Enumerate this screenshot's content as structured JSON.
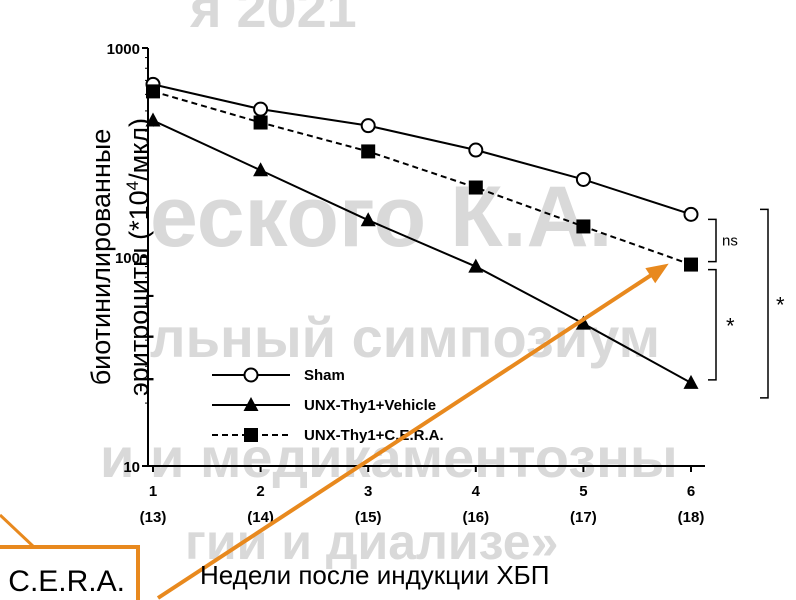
{
  "watermarks": {
    "line1": "я 2021",
    "line2": "еского К.А.",
    "line3": "льный симпозиум",
    "line4": "и и медикаментозны",
    "line5": "гии и диализе»"
  },
  "cera_box_label": "C.E.R.A.",
  "chart_data": {
    "type": "line",
    "ylabel_part1": "биотинилированные",
    "ylabel_part2": "эритроциты (*10",
    "ylabel_sup": "4",
    "ylabel_part3": "/мкл)",
    "xlabel": "Недели после индукции ХБП",
    "y_scale": "log",
    "ylim": [
      10,
      1000
    ],
    "y_ticks": [
      {
        "value": 10,
        "label": "10"
      },
      {
        "value": 100,
        "label": "100"
      },
      {
        "value": 1000,
        "label": "1000"
      }
    ],
    "x": [
      1,
      2,
      3,
      4,
      5,
      6
    ],
    "x_tick_labels": [
      "1",
      "2",
      "3",
      "4",
      "5",
      "6"
    ],
    "x_tick_sublabels": [
      "(13)",
      "(14)",
      "(15)",
      "(16)",
      "(17)",
      "(18)"
    ],
    "series": [
      {
        "name": "Sham",
        "marker": "circle-open",
        "dash": "solid",
        "values": [
          670,
          510,
          425,
          325,
          235,
          160
        ]
      },
      {
        "name": "UNX-Thy1+Vehicle",
        "marker": "triangle",
        "dash": "solid",
        "values": [
          450,
          260,
          150,
          90,
          48,
          25
        ]
      },
      {
        "name": "UNX-Thy1+C.E.R.A.",
        "marker": "square",
        "dash": "dashed",
        "values": [
          620,
          440,
          320,
          215,
          140,
          92
        ]
      }
    ],
    "significance": [
      {
        "label": "ns"
      },
      {
        "label": "*"
      },
      {
        "label": "*"
      }
    ],
    "arrow_color": "#e8891e"
  }
}
